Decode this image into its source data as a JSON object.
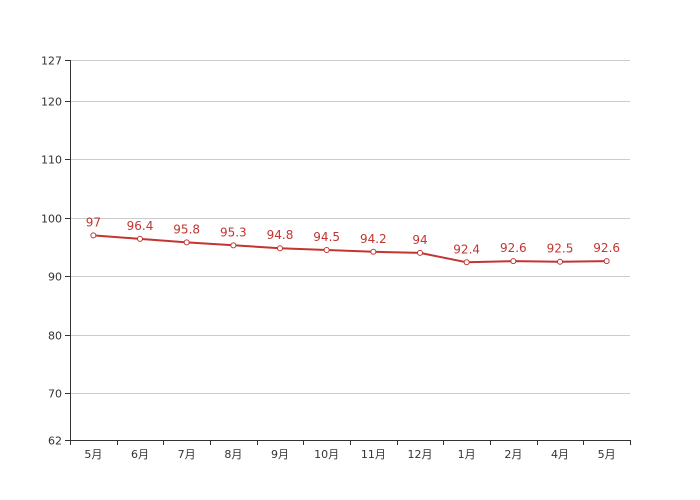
{
  "chart_data": {
    "type": "line",
    "categories": [
      "5月",
      "6月",
      "7月",
      "8月",
      "9月",
      "10月",
      "11月",
      "12月",
      "1月",
      "2月",
      "4月",
      "5月"
    ],
    "series": [
      {
        "values": [
          97,
          96.4,
          95.8,
          95.3,
          94.8,
          94.5,
          94.2,
          94,
          92.4,
          92.6,
          92.5,
          92.6
        ],
        "value_labels": [
          "97",
          "96.4",
          "95.8",
          "95.3",
          "94.8",
          "94.5",
          "94.2",
          "94",
          "92.4",
          "92.6",
          "92.5",
          "92.6"
        ]
      }
    ],
    "ylim": [
      62,
      127
    ],
    "y_ticks": [
      62,
      70,
      80,
      90,
      100,
      110,
      120,
      127
    ],
    "y_tick_labels": [
      "62",
      "70",
      "80",
      "90",
      "100",
      "110",
      "120",
      "127"
    ],
    "grid": true,
    "line_color": "#c23531",
    "marker_fill": "#ffffff",
    "grid_color": "#cccccc",
    "axis_color": "#333333"
  }
}
